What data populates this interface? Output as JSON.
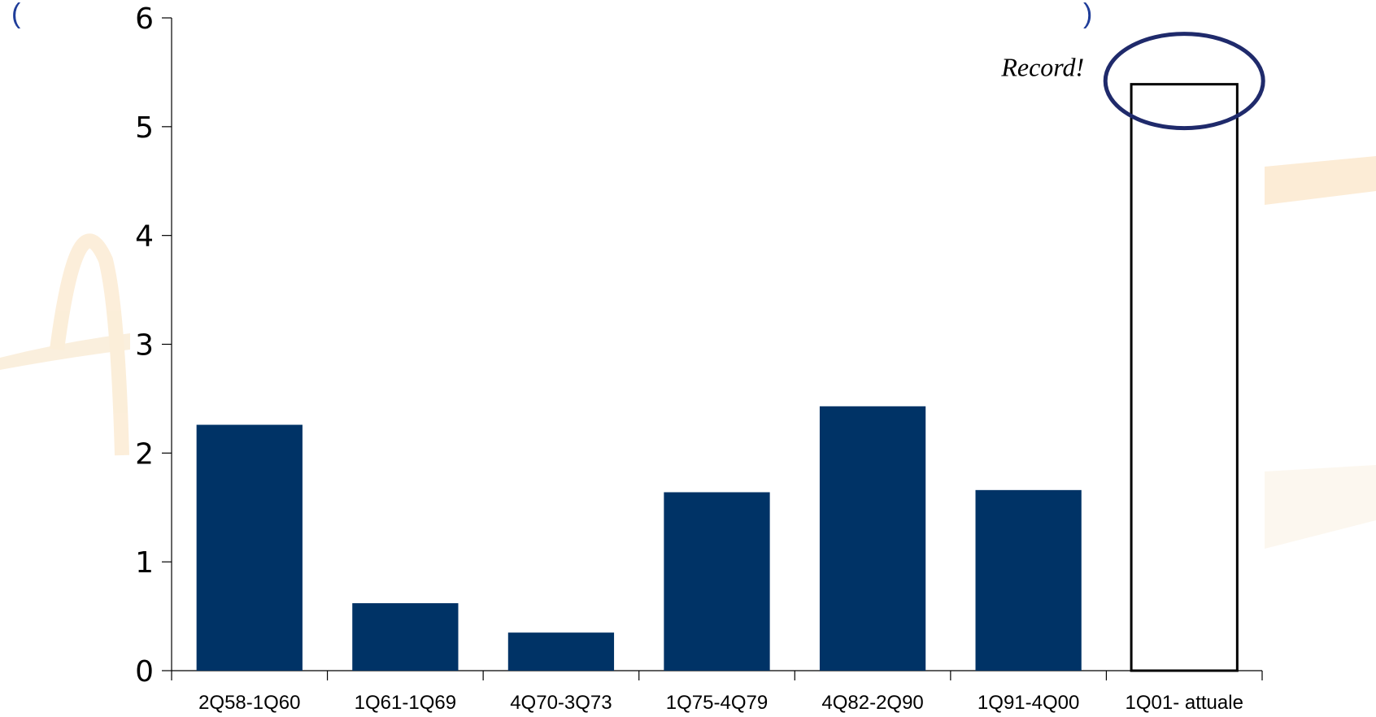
{
  "chart_data": {
    "type": "bar",
    "categories": [
      "2Q58-1Q60",
      "1Q61-1Q69",
      "4Q70-3Q73",
      "1Q75-4Q79",
      "4Q82-2Q90",
      "1Q91-4Q00",
      "1Q01- attuale"
    ],
    "values": [
      2.26,
      0.62,
      0.35,
      1.64,
      2.43,
      1.66,
      5.39
    ],
    "highlight_index": 6,
    "ylim": [
      0,
      6
    ],
    "yticks": [
      0,
      1,
      2,
      3,
      4,
      5,
      6
    ],
    "ytick_labels": [
      "0",
      "1",
      "2",
      "3",
      "4",
      "5",
      "6"
    ],
    "xlabel": "",
    "ylabel": "",
    "annotation": "Record!",
    "title_fragment_left": "(",
    "title_fragment_right": ")",
    "grid": false,
    "colors": {
      "bar": "#003366",
      "highlight_fill": "#ffffff",
      "highlight_stroke": "#000000",
      "ellipse": "#1f2a6b",
      "title": "#1f3d99"
    }
  }
}
